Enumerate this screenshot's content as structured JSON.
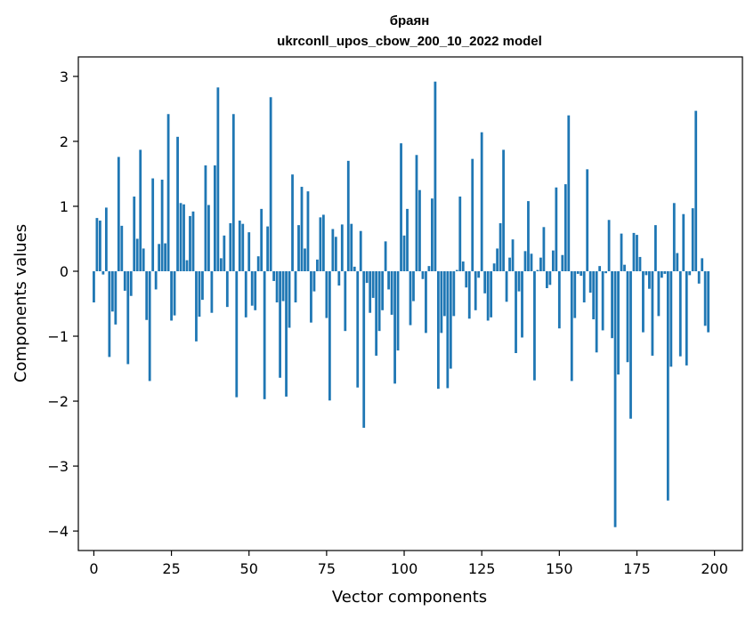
{
  "chart_data": {
    "type": "bar",
    "title": "браян",
    "subtitle": "ukrconll_upos_cbow_200_10_2022 model",
    "xlabel": "Vector components",
    "ylabel": "Components values",
    "xlim": [
      -5,
      209
    ],
    "ylim": [
      -4.3,
      3.3
    ],
    "xticks": [
      0,
      25,
      50,
      75,
      100,
      125,
      150,
      175,
      200
    ],
    "xtick_labels": [
      "0",
      "25",
      "50",
      "75",
      "100",
      "125",
      "150",
      "175",
      "200"
    ],
    "yticks": [
      -4,
      -3,
      -2,
      -1,
      0,
      1,
      2,
      3
    ],
    "ytick_labels": [
      "−4",
      "−3",
      "−2",
      "−1",
      "0",
      "1",
      "2",
      "3"
    ],
    "bar_color": "#1f77b4",
    "values": [
      -0.48,
      0.82,
      0.78,
      -0.05,
      0.98,
      -1.32,
      -0.62,
      -0.82,
      1.76,
      0.7,
      -0.3,
      -1.43,
      -0.38,
      1.15,
      0.5,
      1.87,
      0.35,
      -0.75,
      -1.69,
      1.43,
      -0.28,
      0.42,
      1.41,
      0.43,
      2.42,
      -0.76,
      -0.68,
      2.07,
      1.05,
      1.03,
      0.17,
      0.85,
      0.92,
      -1.08,
      -0.7,
      -0.44,
      1.63,
      1.02,
      -0.64,
      1.63,
      2.83,
      0.2,
      0.55,
      -0.55,
      0.74,
      2.42,
      -1.94,
      0.78,
      0.73,
      -0.71,
      0.6,
      -0.53,
      -0.6,
      0.23,
      0.96,
      -1.97,
      0.69,
      2.68,
      -0.15,
      -0.48,
      -1.64,
      -0.46,
      -1.93,
      -0.87,
      1.49,
      -0.48,
      0.71,
      1.3,
      0.35,
      1.23,
      -0.79,
      -0.31,
      0.18,
      0.83,
      0.87,
      -0.72,
      -1.99,
      0.65,
      0.53,
      -0.22,
      0.72,
      -0.92,
      1.7,
      0.73,
      0.07,
      -1.79,
      0.62,
      -2.41,
      -0.18,
      -0.64,
      -0.41,
      -1.3,
      -0.92,
      -0.6,
      0.46,
      -0.28,
      -0.67,
      -1.73,
      -1.22,
      1.97,
      0.55,
      0.96,
      -0.83,
      -0.46,
      1.79,
      1.25,
      -0.12,
      -0.95,
      0.08,
      1.12,
      2.92,
      -1.81,
      -0.95,
      -0.69,
      -1.8,
      -1.5,
      -0.69,
      0.02,
      1.15,
      0.15,
      -0.25,
      -0.73,
      1.73,
      -0.6,
      -0.1,
      2.14,
      -0.34,
      -0.76,
      -0.71,
      0.12,
      0.35,
      0.74,
      1.87,
      -0.47,
      0.21,
      0.49,
      -1.26,
      -0.31,
      -1.02,
      0.31,
      1.08,
      0.27,
      -1.68,
      0.02,
      0.21,
      0.68,
      -0.26,
      -0.21,
      0.32,
      1.29,
      -0.88,
      0.25,
      1.34,
      2.4,
      -1.69,
      -0.72,
      -0.04,
      -0.07,
      -0.48,
      1.57,
      -0.33,
      -0.74,
      -1.25,
      0.08,
      -0.91,
      -0.03,
      0.79,
      -1.03,
      -3.94,
      -1.59,
      0.58,
      0.1,
      -1.4,
      -2.27,
      0.59,
      0.56,
      0.22,
      -0.94,
      -0.06,
      -0.27,
      -1.3,
      0.71,
      -0.69,
      -0.1,
      -0.04,
      -3.53,
      -1.47,
      1.05,
      0.28,
      -1.31,
      0.88,
      -1.45,
      -0.06,
      0.97,
      2.47,
      -0.19,
      0.2,
      -0.84,
      -0.94
    ]
  }
}
